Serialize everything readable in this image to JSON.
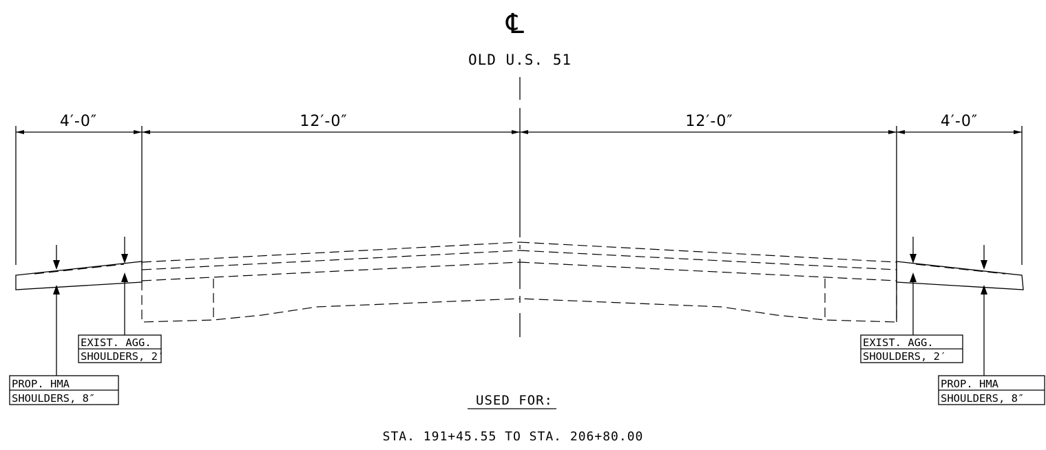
{
  "centerline": {
    "symbol": "℄",
    "road_name": "OLD U.S. 51"
  },
  "dimensions": {
    "left_shoulder": "4′-0″",
    "left_lane": "12′-0″",
    "right_lane": "12′-0″",
    "right_shoulder": "4′-0″"
  },
  "labels": {
    "exist_agg_left": [
      "EXIST. AGG.",
      "SHOULDERS, 2′"
    ],
    "exist_agg_right": [
      "EXIST. AGG.",
      "SHOULDERS, 2′"
    ],
    "prop_hma_left": [
      "PROP. HMA",
      "SHOULDERS, 8″"
    ],
    "prop_hma_right": [
      "PROP. HMA",
      "SHOULDERS, 8″"
    ]
  },
  "notes": {
    "used_for_heading": "USED FOR:",
    "station_range": "STA. 191+45.55 TO STA. 206+80.00"
  }
}
